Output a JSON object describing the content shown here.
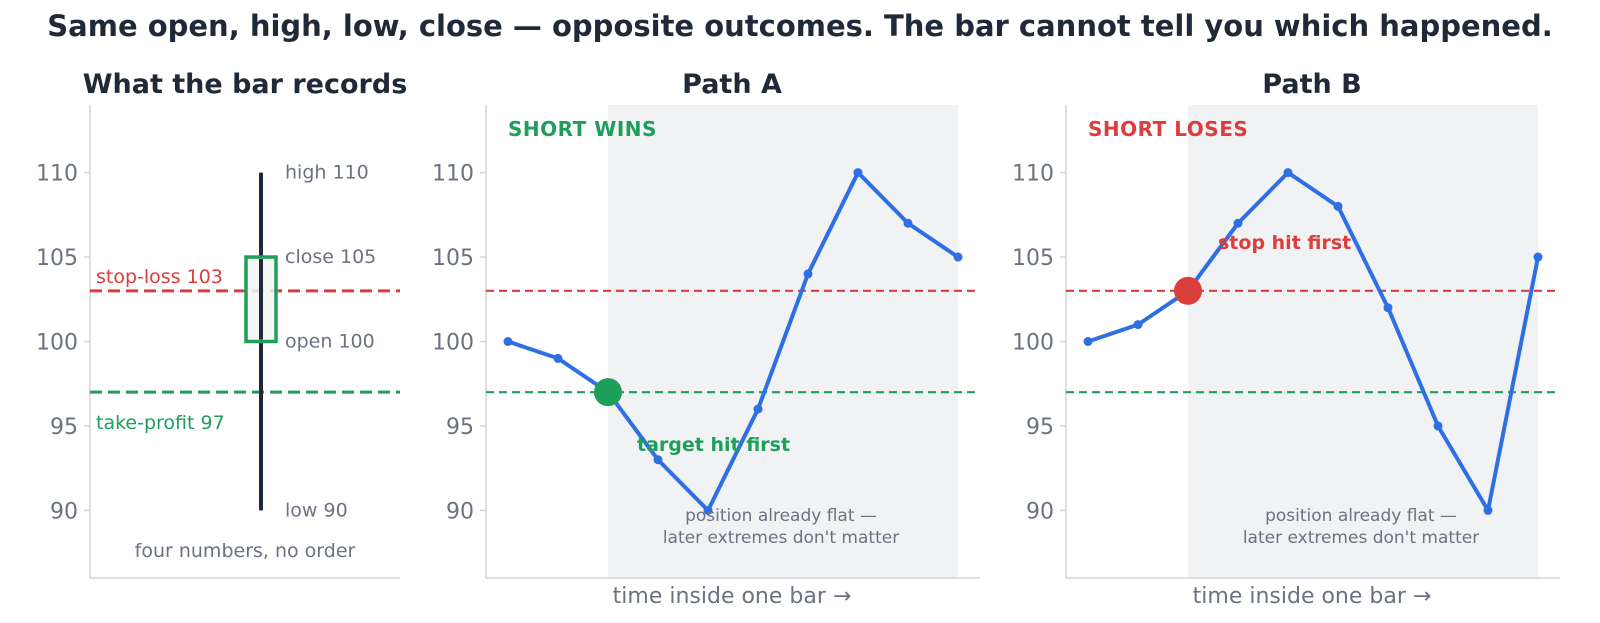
{
  "title": "Same open, high, low, close — opposite outcomes. The bar cannot tell you which happened.",
  "colors": {
    "stop": "#dc3d3d",
    "target": "#1e9e5a",
    "path": "#2f6fe4",
    "candle": "#1e9e5a",
    "wick": "#1f2937",
    "shade": "#f1f2f4",
    "axis": "#d1d5db",
    "text": "#1f2937",
    "muted": "#6b7280"
  },
  "chart_data": [
    {
      "type": "candlestick",
      "title": "What the bar records",
      "ylim": [
        86,
        114
      ],
      "yticks": [
        90,
        95,
        100,
        105,
        110
      ],
      "ohlc": {
        "open": 100,
        "high": 110,
        "low": 90,
        "close": 105
      },
      "labels": {
        "high": "high 110",
        "close": "close 105",
        "open": "open 100",
        "low": "low 90"
      },
      "levels": [
        {
          "name": "stop-loss",
          "value": 103,
          "label": "stop-loss 103",
          "color": "#dc3d3d"
        },
        {
          "name": "take-profit",
          "value": 97,
          "label": "take-profit 97",
          "color": "#1e9e5a"
        }
      ],
      "caption": "four numbers, no order",
      "grid": false
    },
    {
      "type": "line",
      "title": "Path A",
      "xlabel": "time inside one bar →",
      "ylim": [
        86,
        114
      ],
      "yticks": [
        90,
        95,
        100,
        105,
        110
      ],
      "x": [
        0,
        1,
        2,
        3,
        4,
        5,
        6,
        7,
        8,
        9
      ],
      "y": [
        100,
        99,
        97,
        93,
        90,
        96,
        104,
        110,
        107,
        105
      ],
      "levels": [
        103,
        97
      ],
      "outcome": "SHORT WINS",
      "outcome_color": "#1e9e5a",
      "event": {
        "index": 2,
        "value": 97,
        "label": "target hit first",
        "color": "#1e9e5a"
      },
      "shade_from_index": 2,
      "shade_note": [
        "position already flat —",
        "later extremes don't matter"
      ],
      "grid": false
    },
    {
      "type": "line",
      "title": "Path B",
      "xlabel": "time inside one bar →",
      "ylim": [
        86,
        114
      ],
      "yticks": [
        90,
        95,
        100,
        105,
        110
      ],
      "x": [
        0,
        1,
        2,
        3,
        4,
        5,
        6,
        7,
        8,
        9
      ],
      "y": [
        100,
        101,
        103,
        107,
        110,
        108,
        102,
        95,
        90,
        105
      ],
      "levels": [
        103,
        97
      ],
      "outcome": "SHORT LOSES",
      "outcome_color": "#dc3d3d",
      "event": {
        "index": 2,
        "value": 103,
        "label": "stop hit first",
        "color": "#dc3d3d"
      },
      "shade_from_index": 2,
      "shade_note": [
        "position already flat —",
        "later extremes don't matter"
      ],
      "grid": false
    }
  ]
}
